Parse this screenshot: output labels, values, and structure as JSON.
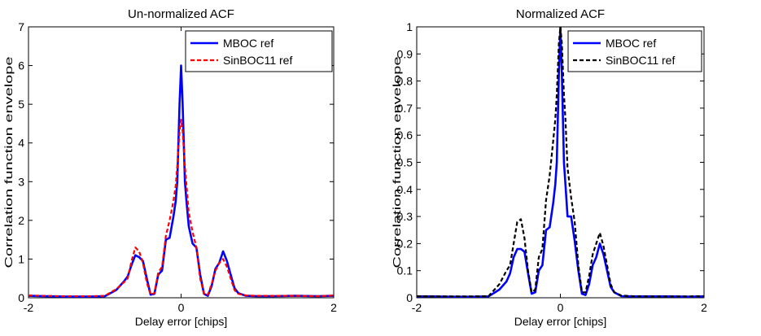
{
  "chart_data": [
    {
      "type": "line",
      "title": "Un-normalized ACF",
      "xlabel": "Delay error [chips]",
      "ylabel": "Correlation function envelope",
      "xlim": [
        -2,
        2
      ],
      "ylim": [
        0,
        7
      ],
      "xticks": [
        "-2",
        "0",
        "2"
      ],
      "yticks": [
        "0",
        "1",
        "2",
        "3",
        "4",
        "5",
        "6",
        "7"
      ],
      "legend_position": "top-right",
      "grid": false,
      "series": [
        {
          "name": "MBOC ref",
          "color": "#0000ff",
          "style": "solid",
          "x": [
            -2,
            -1.8,
            -1.5,
            -1.2,
            -1.0,
            -0.85,
            -0.75,
            -0.7,
            -0.65,
            -0.6,
            -0.55,
            -0.5,
            -0.45,
            -0.4,
            -0.35,
            -0.3,
            -0.25,
            -0.2,
            -0.15,
            -0.1,
            -0.07,
            -0.05,
            -0.02,
            0,
            0.02,
            0.05,
            0.07,
            0.1,
            0.15,
            0.2,
            0.25,
            0.3,
            0.35,
            0.4,
            0.45,
            0.5,
            0.55,
            0.6,
            0.65,
            0.7,
            0.75,
            0.85,
            1.0,
            1.2,
            1.5,
            1.8,
            2
          ],
          "y": [
            0.05,
            0.04,
            0.03,
            0.03,
            0.04,
            0.2,
            0.42,
            0.55,
            0.85,
            1.1,
            1.05,
            0.95,
            0.5,
            0.08,
            0.1,
            0.6,
            0.7,
            1.5,
            1.55,
            2.1,
            2.5,
            3.0,
            5.0,
            6.0,
            5.0,
            3.0,
            2.5,
            1.85,
            1.4,
            1.3,
            0.6,
            0.1,
            0.05,
            0.3,
            0.75,
            0.9,
            1.2,
            0.95,
            0.6,
            0.25,
            0.12,
            0.05,
            0.04,
            0.04,
            0.05,
            0.04,
            0.05
          ]
        },
        {
          "name": "SinBOC11 ref",
          "color": "#ff0000",
          "style": "dashed",
          "x": [
            -2,
            -1.8,
            -1.5,
            -1.2,
            -1.0,
            -0.85,
            -0.75,
            -0.7,
            -0.65,
            -0.6,
            -0.55,
            -0.5,
            -0.45,
            -0.4,
            -0.35,
            -0.3,
            -0.25,
            -0.2,
            -0.15,
            -0.1,
            -0.07,
            -0.05,
            -0.02,
            0,
            0.02,
            0.05,
            0.07,
            0.1,
            0.15,
            0.2,
            0.25,
            0.3,
            0.35,
            0.4,
            0.45,
            0.5,
            0.55,
            0.6,
            0.65,
            0.7,
            0.75,
            0.85,
            1.0,
            1.2,
            1.5,
            1.8,
            2
          ],
          "y": [
            0.06,
            0.05,
            0.04,
            0.04,
            0.05,
            0.22,
            0.4,
            0.5,
            0.95,
            1.3,
            1.2,
            0.9,
            0.4,
            0.08,
            0.12,
            0.65,
            0.8,
            1.6,
            2.0,
            2.5,
            2.9,
            3.4,
            4.3,
            4.6,
            4.3,
            3.4,
            2.9,
            2.2,
            1.7,
            1.3,
            0.5,
            0.1,
            0.08,
            0.35,
            0.7,
            0.9,
            1.0,
            0.8,
            0.5,
            0.2,
            0.1,
            0.06,
            0.05,
            0.05,
            0.05,
            0.04,
            0.06
          ]
        }
      ]
    },
    {
      "type": "line",
      "title": "Normalized ACF",
      "xlabel": "Delay error [chips]",
      "ylabel": "Correlation function envelope",
      "xlim": [
        -2,
        2
      ],
      "ylim": [
        0,
        1
      ],
      "xticks": [
        "-2",
        "0",
        "2"
      ],
      "yticks": [
        "0",
        "0.1",
        "0.2",
        "0.3",
        "0.4",
        "0.5",
        "0.6",
        "0.7",
        "0.8",
        "0.9",
        "1"
      ],
      "legend_position": "top-right",
      "grid": false,
      "series": [
        {
          "name": "MBOC ref",
          "color": "#0000ff",
          "style": "solid",
          "x": [
            -2,
            -1.8,
            -1.5,
            -1.2,
            -1.0,
            -0.85,
            -0.75,
            -0.7,
            -0.65,
            -0.6,
            -0.55,
            -0.5,
            -0.45,
            -0.4,
            -0.35,
            -0.3,
            -0.25,
            -0.2,
            -0.15,
            -0.1,
            -0.07,
            -0.05,
            -0.02,
            0,
            0.02,
            0.05,
            0.07,
            0.1,
            0.15,
            0.2,
            0.25,
            0.3,
            0.35,
            0.4,
            0.45,
            0.5,
            0.55,
            0.6,
            0.65,
            0.7,
            0.75,
            0.85,
            1.0,
            1.2,
            1.5,
            1.8,
            2
          ],
          "y": [
            0.005,
            0.005,
            0.004,
            0.004,
            0.005,
            0.03,
            0.06,
            0.09,
            0.15,
            0.18,
            0.18,
            0.17,
            0.09,
            0.015,
            0.02,
            0.1,
            0.12,
            0.25,
            0.26,
            0.35,
            0.42,
            0.5,
            0.83,
            1.0,
            0.83,
            0.5,
            0.42,
            0.3,
            0.3,
            0.21,
            0.1,
            0.015,
            0.01,
            0.05,
            0.12,
            0.15,
            0.2,
            0.16,
            0.1,
            0.04,
            0.02,
            0.006,
            0.005,
            0.005,
            0.005,
            0.004,
            0.005
          ]
        },
        {
          "name": "SinBOC11 ref",
          "color": "#000000",
          "style": "dashed",
          "x": [
            -2,
            -1.8,
            -1.5,
            -1.2,
            -1.0,
            -0.85,
            -0.75,
            -0.7,
            -0.65,
            -0.6,
            -0.55,
            -0.5,
            -0.45,
            -0.4,
            -0.35,
            -0.3,
            -0.25,
            -0.2,
            -0.15,
            -0.1,
            -0.07,
            -0.05,
            -0.02,
            0,
            0.02,
            0.05,
            0.07,
            0.1,
            0.15,
            0.2,
            0.25,
            0.3,
            0.35,
            0.4,
            0.45,
            0.5,
            0.55,
            0.6,
            0.65,
            0.7,
            0.75,
            0.85,
            1.0,
            1.2,
            1.5,
            1.8,
            2
          ],
          "y": [
            0.006,
            0.005,
            0.005,
            0.005,
            0.006,
            0.05,
            0.1,
            0.12,
            0.2,
            0.28,
            0.29,
            0.22,
            0.1,
            0.02,
            0.03,
            0.15,
            0.18,
            0.36,
            0.45,
            0.58,
            0.66,
            0.75,
            0.94,
            1.0,
            0.94,
            0.75,
            0.66,
            0.48,
            0.37,
            0.28,
            0.12,
            0.02,
            0.02,
            0.08,
            0.16,
            0.2,
            0.24,
            0.19,
            0.12,
            0.05,
            0.02,
            0.008,
            0.006,
            0.005,
            0.005,
            0.005,
            0.006
          ]
        }
      ]
    }
  ]
}
